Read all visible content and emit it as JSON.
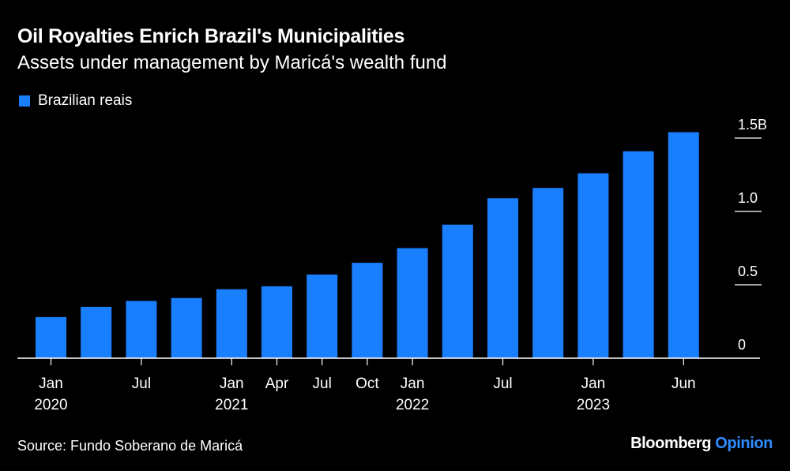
{
  "title": "Oil Royalties Enrich Brazil's Municipalities",
  "subtitle": "Assets under management by Maricá's wealth fund",
  "legend": {
    "label": "Brazilian reais",
    "color": "#1a7fff"
  },
  "source": "Source: Fundo Soberano de Maricá",
  "brand": {
    "name": "Bloomberg",
    "suffix": "Opinion"
  },
  "chart_data": {
    "type": "bar",
    "title": "Oil Royalties Enrich Brazil's Municipalities",
    "subtitle": "Assets under management by Maricá's wealth fund",
    "series": [
      {
        "name": "Brazilian reais",
        "x": [
          "Jan 2020",
          "Apr 2020",
          "Jul 2020",
          "Oct 2020",
          "Jan 2021",
          "Apr 2021",
          "Jul 2021",
          "Oct 2021",
          "Jan 2022",
          "Apr 2022",
          "Jul 2022",
          "Oct 2022",
          "Jan 2023",
          "Apr 2023",
          "Jun 2023"
        ],
        "values": [
          0.28,
          0.35,
          0.39,
          0.41,
          0.47,
          0.49,
          0.57,
          0.65,
          0.75,
          0.91,
          1.09,
          1.16,
          1.26,
          1.41,
          1.54
        ]
      }
    ],
    "ylim": [
      0,
      1.5
    ],
    "yticks": [
      {
        "value": 0,
        "label": "0"
      },
      {
        "value": 0.5,
        "label": "0.5"
      },
      {
        "value": 1.0,
        "label": "1.0"
      },
      {
        "value": 1.5,
        "label": "1.5B"
      }
    ],
    "xticks": [
      {
        "index": 0,
        "label": "Jan",
        "year": "2020"
      },
      {
        "index": 2,
        "label": "Jul",
        "year": ""
      },
      {
        "index": 4,
        "label": "Jan",
        "year": "2021"
      },
      {
        "index": 5,
        "label": "Apr",
        "year": ""
      },
      {
        "index": 6,
        "label": "Jul",
        "year": ""
      },
      {
        "index": 7,
        "label": "Oct",
        "year": ""
      },
      {
        "index": 8,
        "label": "Jan",
        "year": "2022"
      },
      {
        "index": 10,
        "label": "Jul",
        "year": ""
      },
      {
        "index": 12,
        "label": "Jan",
        "year": "2023"
      },
      {
        "index": 14,
        "label": "Jun",
        "year": ""
      }
    ],
    "xlabel": "",
    "ylabel": ""
  }
}
